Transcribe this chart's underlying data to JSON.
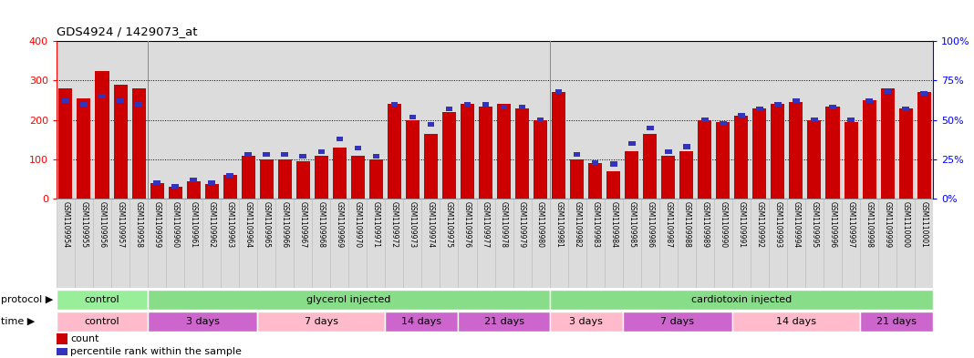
{
  "title": "GDS4924 / 1429073_at",
  "samples": [
    "GSM1109954",
    "GSM1109955",
    "GSM1109956",
    "GSM1109957",
    "GSM1109958",
    "GSM1109959",
    "GSM1109960",
    "GSM1109961",
    "GSM1109962",
    "GSM1109963",
    "GSM1109964",
    "GSM1109965",
    "GSM1109966",
    "GSM1109967",
    "GSM1109968",
    "GSM1109969",
    "GSM1109970",
    "GSM1109971",
    "GSM1109972",
    "GSM1109973",
    "GSM1109974",
    "GSM1109975",
    "GSM1109976",
    "GSM1109977",
    "GSM1109978",
    "GSM1109979",
    "GSM1109980",
    "GSM1109981",
    "GSM1109982",
    "GSM1109983",
    "GSM1109984",
    "GSM1109985",
    "GSM1109986",
    "GSM1109987",
    "GSM1109988",
    "GSM1109989",
    "GSM1109990",
    "GSM1109991",
    "GSM1109992",
    "GSM1109993",
    "GSM1109994",
    "GSM1109995",
    "GSM1109996",
    "GSM1109997",
    "GSM1109998",
    "GSM1109999",
    "GSM1110000",
    "GSM1110001"
  ],
  "counts": [
    280,
    255,
    325,
    290,
    280,
    40,
    30,
    45,
    38,
    60,
    110,
    100,
    100,
    95,
    110,
    130,
    110,
    100,
    240,
    200,
    165,
    220,
    240,
    235,
    240,
    230,
    200,
    270,
    100,
    90,
    70,
    120,
    165,
    110,
    120,
    200,
    195,
    210,
    230,
    240,
    245,
    200,
    235,
    195,
    250,
    280,
    230,
    270
  ],
  "percentile_ranks": [
    62,
    60,
    65,
    62,
    60,
    10,
    8,
    12,
    10,
    15,
    28,
    28,
    28,
    27,
    30,
    38,
    32,
    27,
    60,
    52,
    47,
    57,
    60,
    60,
    58,
    58,
    50,
    68,
    28,
    23,
    22,
    35,
    45,
    30,
    33,
    50,
    48,
    53,
    57,
    60,
    62,
    50,
    58,
    50,
    62,
    68,
    57,
    67
  ],
  "bar_color": "#CC0000",
  "percentile_color": "#3333BB",
  "bg_color": "#DCDCDC",
  "ylim_left": [
    0,
    400
  ],
  "ylim_right": [
    0,
    100
  ],
  "yticks_left": [
    0,
    100,
    200,
    300,
    400
  ],
  "yticks_right": [
    0,
    25,
    50,
    75,
    100
  ],
  "protocol_groups": [
    {
      "label": "control",
      "start": 0,
      "end": 5,
      "color": "#99EE99"
    },
    {
      "label": "glycerol injected",
      "start": 5,
      "end": 27,
      "color": "#88DD88"
    },
    {
      "label": "cardiotoxin injected",
      "start": 27,
      "end": 48,
      "color": "#88DD88"
    }
  ],
  "time_colors_alt": [
    "#FFBBCC",
    "#CC66CC",
    "#FFBBCC",
    "#CC66CC",
    "#CC66CC",
    "#FFBBCC",
    "#CC66CC",
    "#FFBBCC",
    "#CC66CC"
  ],
  "time_groups": [
    {
      "label": "control",
      "start": 0,
      "end": 5
    },
    {
      "label": "3 days",
      "start": 5,
      "end": 11
    },
    {
      "label": "7 days",
      "start": 11,
      "end": 18
    },
    {
      "label": "14 days",
      "start": 18,
      "end": 22
    },
    {
      "label": "21 days",
      "start": 22,
      "end": 27
    },
    {
      "label": "3 days",
      "start": 27,
      "end": 31
    },
    {
      "label": "7 days",
      "start": 31,
      "end": 37
    },
    {
      "label": "14 days",
      "start": 37,
      "end": 44
    },
    {
      "label": "21 days",
      "start": 44,
      "end": 48
    }
  ],
  "group_separators": [
    4.5,
    26.5
  ],
  "legend_count_color": "#CC0000",
  "legend_pct_color": "#3333BB"
}
